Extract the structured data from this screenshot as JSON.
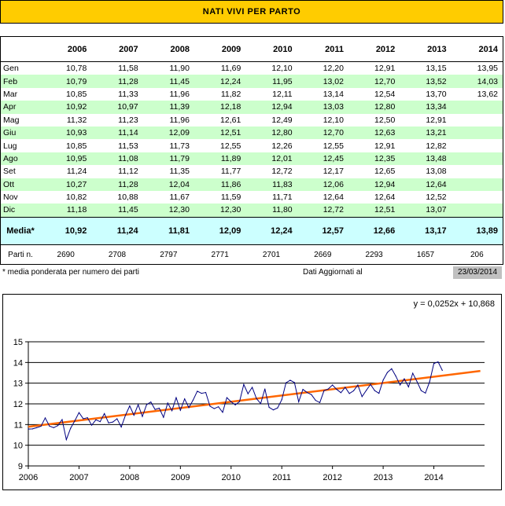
{
  "title": "NATI VIVI PER PARTO",
  "table": {
    "years": [
      "2006",
      "2007",
      "2008",
      "2009",
      "2010",
      "2011",
      "2012",
      "2013",
      "2014"
    ],
    "rows": [
      {
        "month": "Gen",
        "values": [
          "10,78",
          "11,58",
          "11,90",
          "11,69",
          "12,10",
          "12,20",
          "12,91",
          "13,15",
          "13,95"
        ]
      },
      {
        "month": "Feb",
        "values": [
          "10,79",
          "11,28",
          "11,45",
          "12,24",
          "11,95",
          "13,02",
          "12,70",
          "13,52",
          "14,03"
        ]
      },
      {
        "month": "Mar",
        "values": [
          "10,85",
          "11,33",
          "11,96",
          "11,82",
          "12,11",
          "13,14",
          "12,54",
          "13,70",
          "13,62"
        ]
      },
      {
        "month": "Apr",
        "values": [
          "10,92",
          "10,97",
          "11,39",
          "12,18",
          "12,94",
          "13,03",
          "12,80",
          "13,34",
          ""
        ]
      },
      {
        "month": "Mag",
        "values": [
          "11,32",
          "11,23",
          "11,96",
          "12,61",
          "12,49",
          "12,10",
          "12,50",
          "12,91",
          ""
        ]
      },
      {
        "month": "Giu",
        "values": [
          "10,93",
          "11,14",
          "12,09",
          "12,51",
          "12,80",
          "12,70",
          "12,63",
          "13,21",
          ""
        ]
      },
      {
        "month": "Lug",
        "values": [
          "10,85",
          "11,53",
          "11,73",
          "12,55",
          "12,26",
          "12,55",
          "12,91",
          "12,82",
          ""
        ]
      },
      {
        "month": "Ago",
        "values": [
          "10,95",
          "11,08",
          "11,79",
          "11,89",
          "12,01",
          "12,45",
          "12,35",
          "13,48",
          ""
        ]
      },
      {
        "month": "Set",
        "values": [
          "11,24",
          "11,12",
          "11,35",
          "11,77",
          "12,72",
          "12,17",
          "12,65",
          "13,08",
          ""
        ]
      },
      {
        "month": "Ott",
        "values": [
          "10,27",
          "11,28",
          "12,04",
          "11,86",
          "11,83",
          "12,06",
          "12,94",
          "12,64",
          ""
        ]
      },
      {
        "month": "Nov",
        "values": [
          "10,82",
          "10,88",
          "11,67",
          "11,59",
          "11,71",
          "12,64",
          "12,64",
          "12,52",
          ""
        ]
      },
      {
        "month": "Dic",
        "values": [
          "11,18",
          "11,45",
          "12,30",
          "12,30",
          "11,80",
          "12,72",
          "12,51",
          "13,07",
          ""
        ]
      }
    ],
    "media_label": "Media*",
    "media": [
      "10,92",
      "11,24",
      "11,81",
      "12,09",
      "12,24",
      "12,57",
      "12,66",
      "13,17",
      "13,89"
    ],
    "parti_label": "Parti n.",
    "parti": [
      "2690",
      "2708",
      "2797",
      "2771",
      "2701",
      "2669",
      "2293",
      "1657",
      "206"
    ]
  },
  "footnote": "* media ponderata per numero dei parti",
  "updated_label": "Dati Aggiornati al",
  "updated_date": "23/03/2014",
  "colors": {
    "title_bg": "#ffcc00",
    "row_alt": "#ccffcc",
    "media_bg": "#ccffff",
    "series": "#000080",
    "trend": "#ff6600",
    "date_bg": "#c0c0c0"
  },
  "chart_data": {
    "type": "line",
    "x": [
      "2006-01",
      "2006-02",
      "2006-03",
      "2006-04",
      "2006-05",
      "2006-06",
      "2006-07",
      "2006-08",
      "2006-09",
      "2006-10",
      "2006-11",
      "2006-12",
      "2007-01",
      "2007-02",
      "2007-03",
      "2007-04",
      "2007-05",
      "2007-06",
      "2007-07",
      "2007-08",
      "2007-09",
      "2007-10",
      "2007-11",
      "2007-12",
      "2008-01",
      "2008-02",
      "2008-03",
      "2008-04",
      "2008-05",
      "2008-06",
      "2008-07",
      "2008-08",
      "2008-09",
      "2008-10",
      "2008-11",
      "2008-12",
      "2009-01",
      "2009-02",
      "2009-03",
      "2009-04",
      "2009-05",
      "2009-06",
      "2009-07",
      "2009-08",
      "2009-09",
      "2009-10",
      "2009-11",
      "2009-12",
      "2010-01",
      "2010-02",
      "2010-03",
      "2010-04",
      "2010-05",
      "2010-06",
      "2010-07",
      "2010-08",
      "2010-09",
      "2010-10",
      "2010-11",
      "2010-12",
      "2011-01",
      "2011-02",
      "2011-03",
      "2011-04",
      "2011-05",
      "2011-06",
      "2011-07",
      "2011-08",
      "2011-09",
      "2011-10",
      "2011-11",
      "2011-12",
      "2012-01",
      "2012-02",
      "2012-03",
      "2012-04",
      "2012-05",
      "2012-06",
      "2012-07",
      "2012-08",
      "2012-09",
      "2012-10",
      "2012-11",
      "2012-12",
      "2013-01",
      "2013-02",
      "2013-03",
      "2013-04",
      "2013-05",
      "2013-06",
      "2013-07",
      "2013-08",
      "2013-09",
      "2013-10",
      "2013-11",
      "2013-12",
      "2014-01",
      "2014-02",
      "2014-03"
    ],
    "series": [
      {
        "values": [
          10.78,
          10.79,
          10.85,
          10.92,
          11.32,
          10.93,
          10.85,
          10.95,
          11.24,
          10.27,
          10.82,
          11.18,
          11.58,
          11.28,
          11.33,
          10.97,
          11.23,
          11.14,
          11.53,
          11.08,
          11.12,
          11.28,
          10.88,
          11.45,
          11.9,
          11.45,
          11.96,
          11.39,
          11.96,
          12.09,
          11.73,
          11.79,
          11.35,
          12.04,
          11.67,
          12.3,
          11.69,
          12.24,
          11.82,
          12.18,
          12.61,
          12.51,
          12.55,
          11.89,
          11.77,
          11.86,
          11.59,
          12.3,
          12.1,
          11.95,
          12.11,
          12.94,
          12.49,
          12.8,
          12.26,
          12.01,
          12.72,
          11.83,
          11.71,
          11.8,
          12.2,
          13.02,
          13.14,
          13.03,
          12.1,
          12.7,
          12.55,
          12.45,
          12.17,
          12.06,
          12.64,
          12.72,
          12.91,
          12.7,
          12.54,
          12.8,
          12.5,
          12.63,
          12.91,
          12.35,
          12.65,
          12.94,
          12.64,
          12.51,
          13.15,
          13.52,
          13.7,
          13.34,
          12.91,
          13.21,
          12.82,
          13.48,
          13.08,
          12.64,
          12.52,
          13.07,
          13.95,
          14.03,
          13.62
        ]
      },
      {
        "type": "trendline",
        "slope": 0.0252,
        "intercept": 10.868,
        "x_end": "2014-12"
      }
    ],
    "annotation": "y = 0,0252x + 10,868",
    "ylim": [
      9,
      15
    ],
    "yticks": [
      "9",
      "10",
      "11",
      "12",
      "13",
      "14",
      "15"
    ],
    "xticks": [
      "2006",
      "2007",
      "2008",
      "2009",
      "2010",
      "2011",
      "2012",
      "2013",
      "2014"
    ],
    "grid": "horizontal"
  }
}
